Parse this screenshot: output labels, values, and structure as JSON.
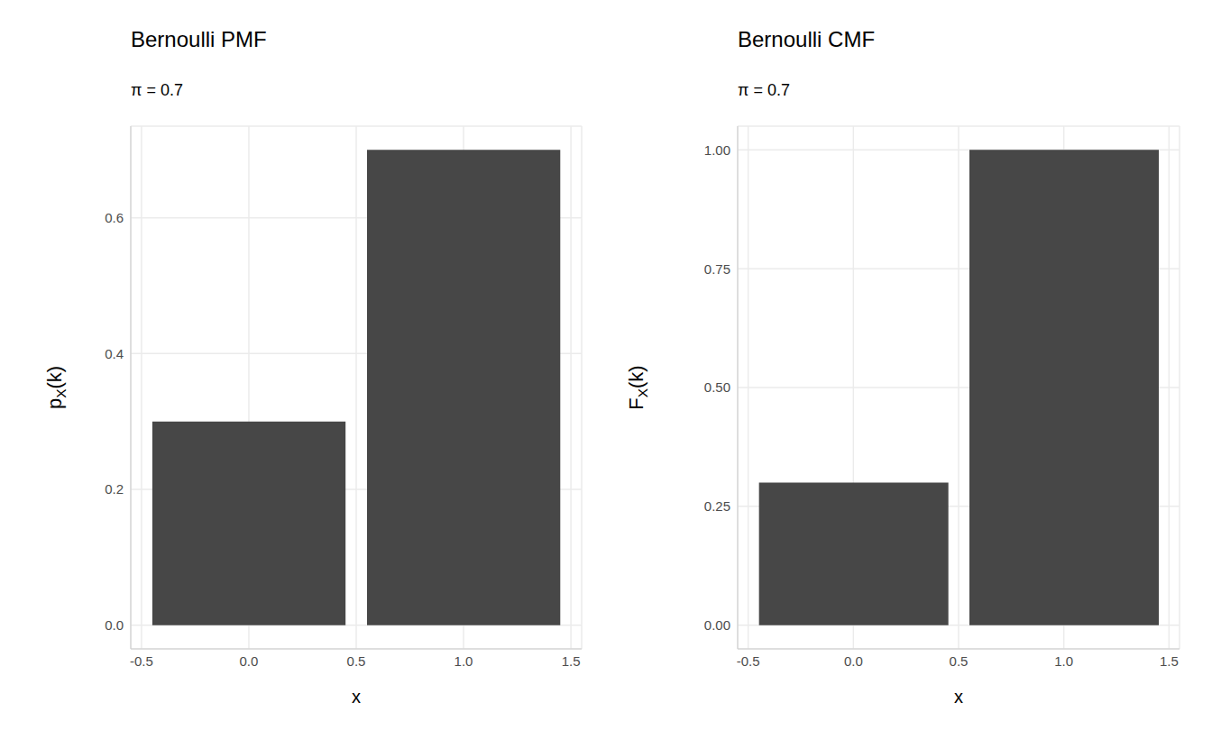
{
  "chart_data": [
    {
      "type": "bar",
      "title": "Bernoulli PMF",
      "subtitle": "π = 0.7",
      "x_label": "x",
      "y_label": "pX(k)",
      "x": [
        0,
        1
      ],
      "values": [
        0.3,
        0.7
      ],
      "color": "#474747",
      "xlim": [
        -0.55,
        1.55
      ],
      "xticks": [
        -0.5,
        {
          "value": 0,
          "label": "0.0"
        },
        0.5,
        {
          "value": 1,
          "label": "1.0"
        },
        1.5
      ],
      "ylim": [
        -0.035,
        0.735
      ],
      "yticks": [
        {
          "value": 0,
          "label": "0.0"
        },
        0.2,
        0.4,
        0.6
      ],
      "grid": true
    },
    {
      "type": "bar",
      "title": "Bernoulli CMF",
      "subtitle": "π = 0.7",
      "x_label": "x",
      "y_label": "FX(k)",
      "x": [
        0,
        1
      ],
      "values": [
        0.3,
        1.0
      ],
      "color": "#474747",
      "xlim": [
        -0.55,
        1.55
      ],
      "xticks": [
        -0.5,
        {
          "value": 0,
          "label": "0.0"
        },
        0.5,
        {
          "value": 1,
          "label": "1.0"
        },
        1.5
      ],
      "ylim": [
        -0.05,
        1.05
      ],
      "yticks": [
        {
          "value": 0,
          "label": "0.00"
        },
        {
          "value": 0.25,
          "label": "0.25"
        },
        {
          "value": 0.5,
          "label": "0.50"
        },
        {
          "value": 0.75,
          "label": "0.75"
        },
        {
          "value": 1,
          "label": "1.00"
        }
      ],
      "grid": true
    }
  ]
}
